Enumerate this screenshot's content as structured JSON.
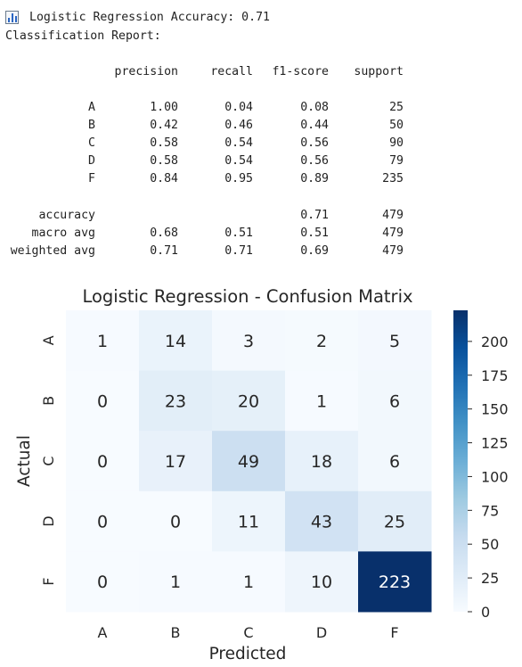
{
  "header": {
    "accuracy_text": "Logistic Regression Accuracy: 0.71",
    "report_title": "Classification Report:"
  },
  "report": {
    "columns": [
      "precision",
      "recall",
      "f1-score",
      "support"
    ],
    "rows": [
      {
        "label": "A",
        "precision": "1.00",
        "recall": "0.04",
        "f1": "0.08",
        "support": "25"
      },
      {
        "label": "B",
        "precision": "0.42",
        "recall": "0.46",
        "f1": "0.44",
        "support": "50"
      },
      {
        "label": "C",
        "precision": "0.58",
        "recall": "0.54",
        "f1": "0.56",
        "support": "90"
      },
      {
        "label": "D",
        "precision": "0.58",
        "recall": "0.54",
        "f1": "0.56",
        "support": "79"
      },
      {
        "label": "F",
        "precision": "0.84",
        "recall": "0.95",
        "f1": "0.89",
        "support": "235"
      }
    ],
    "summary": [
      {
        "label": "accuracy",
        "precision": "",
        "recall": "",
        "f1": "0.71",
        "support": "479"
      },
      {
        "label": "macro avg",
        "precision": "0.68",
        "recall": "0.51",
        "f1": "0.51",
        "support": "479"
      },
      {
        "label": "weighted avg",
        "precision": "0.71",
        "recall": "0.71",
        "f1": "0.69",
        "support": "479"
      }
    ]
  },
  "chart_data": {
    "type": "heatmap",
    "title": "Logistic Regression - Confusion Matrix",
    "xlabel": "Predicted",
    "ylabel": "Actual",
    "x_categories": [
      "A",
      "B",
      "C",
      "D",
      "F"
    ],
    "y_categories": [
      "A",
      "B",
      "C",
      "D",
      "F"
    ],
    "values": [
      [
        1,
        14,
        3,
        2,
        5
      ],
      [
        0,
        23,
        20,
        1,
        6
      ],
      [
        0,
        17,
        49,
        18,
        6
      ],
      [
        0,
        0,
        11,
        43,
        25
      ],
      [
        0,
        1,
        1,
        10,
        223
      ]
    ],
    "colormap": "Blues",
    "vmin": 0,
    "vmax": 223,
    "colorbar_ticks": [
      0,
      25,
      50,
      75,
      100,
      125,
      150,
      175,
      200
    ],
    "colors": {
      "low": "#f7fbff",
      "high": "#08306b"
    }
  }
}
